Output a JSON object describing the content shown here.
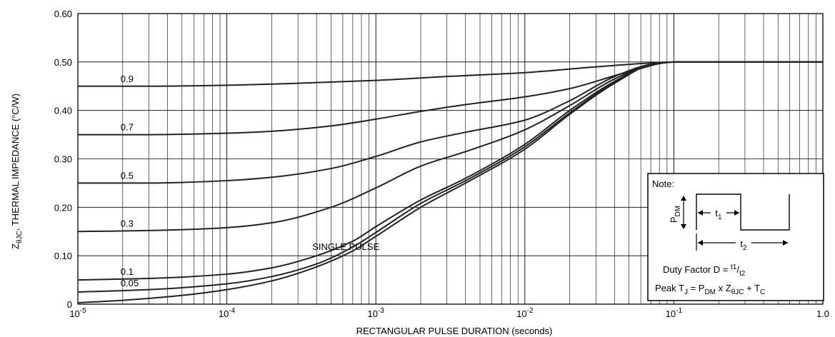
{
  "chart_data": {
    "type": "line",
    "title": "",
    "xscale": "log",
    "xlim": [
      1e-05,
      1.0
    ],
    "ylim": [
      0,
      0.6
    ],
    "grid": true,
    "xlabel": "RECTANGULAR PULSE DURATION (seconds)",
    "ylabel": {
      "prefix": "Z",
      "sub": "θJC",
      "rest": ", THERMAL IMPEDANCE (°C/W)"
    },
    "xtick_labels": [
      {
        "x": 1e-05,
        "base": "10",
        "exp": "-5"
      },
      {
        "x": 0.0001,
        "base": "10",
        "exp": "-4"
      },
      {
        "x": 0.001,
        "base": "10",
        "exp": "-3"
      },
      {
        "x": 0.01,
        "base": "10",
        "exp": "-2"
      },
      {
        "x": 0.1,
        "base": "10",
        "exp": "-1"
      },
      {
        "x": 1.0,
        "base": "1.0",
        "exp": ""
      }
    ],
    "ytick_labels": [
      "0",
      "0.10",
      "0.20",
      "0.30",
      "0.40",
      "0.50",
      "0.60"
    ],
    "yticks": [
      0,
      0.1,
      0.2,
      0.3,
      0.4,
      0.5,
      0.6
    ],
    "series": [
      {
        "name": "0.9",
        "x": [
          1e-05,
          3e-05,
          0.0001,
          0.0003,
          0.001,
          0.003,
          0.01,
          0.03,
          0.07,
          0.1,
          0.3,
          1.0
        ],
        "y": [
          0.45,
          0.45,
          0.452,
          0.456,
          0.462,
          0.47,
          0.478,
          0.49,
          0.498,
          0.5,
          0.5,
          0.5
        ],
        "label_x": 2e-05
      },
      {
        "name": "0.7",
        "x": [
          1e-05,
          3e-05,
          0.0001,
          0.0002,
          0.0005,
          0.001,
          0.002,
          0.004,
          0.01,
          0.02,
          0.05,
          0.1,
          0.3,
          1.0
        ],
        "y": [
          0.35,
          0.35,
          0.353,
          0.357,
          0.368,
          0.382,
          0.398,
          0.412,
          0.428,
          0.445,
          0.48,
          0.5,
          0.5,
          0.5
        ],
        "label_x": 2e-05
      },
      {
        "name": "0.5",
        "x": [
          1e-05,
          3e-05,
          0.0001,
          0.0002,
          0.0005,
          0.001,
          0.002,
          0.004,
          0.01,
          0.02,
          0.04,
          0.07,
          0.1,
          0.3,
          1.0
        ],
        "y": [
          0.25,
          0.25,
          0.255,
          0.262,
          0.28,
          0.305,
          0.335,
          0.355,
          0.38,
          0.42,
          0.47,
          0.495,
          0.5,
          0.5,
          0.5
        ],
        "label_x": 2e-05
      },
      {
        "name": "0.3",
        "x": [
          1e-05,
          3e-05,
          0.0001,
          0.0002,
          0.0005,
          0.001,
          0.002,
          0.004,
          0.01,
          0.02,
          0.04,
          0.07,
          0.1,
          0.3,
          1.0
        ],
        "y": [
          0.15,
          0.152,
          0.158,
          0.168,
          0.2,
          0.24,
          0.285,
          0.315,
          0.36,
          0.41,
          0.465,
          0.495,
          0.5,
          0.5,
          0.5
        ],
        "label_x": 2e-05
      },
      {
        "name": "0.1",
        "x": [
          1e-05,
          3e-05,
          0.0001,
          0.0002,
          0.0004,
          0.0007,
          0.001,
          0.002,
          0.004,
          0.01,
          0.02,
          0.04,
          0.07,
          0.1,
          0.3,
          1.0
        ],
        "y": [
          0.05,
          0.053,
          0.062,
          0.075,
          0.1,
          0.13,
          0.16,
          0.215,
          0.26,
          0.33,
          0.4,
          0.46,
          0.495,
          0.5,
          0.5,
          0.5
        ],
        "label_x": 2e-05
      },
      {
        "name": "0.05",
        "x": [
          1e-05,
          3e-05,
          0.0001,
          0.0002,
          0.0004,
          0.0007,
          0.001,
          0.002,
          0.004,
          0.01,
          0.02,
          0.04,
          0.07,
          0.1,
          0.3,
          1.0
        ],
        "y": [
          0.025,
          0.03,
          0.042,
          0.057,
          0.083,
          0.118,
          0.148,
          0.208,
          0.255,
          0.325,
          0.395,
          0.458,
          0.494,
          0.5,
          0.5,
          0.5
        ],
        "label_x": 2e-05
      },
      {
        "name": "SINGLE PULSE",
        "x": [
          1e-05,
          2e-05,
          5e-05,
          0.0001,
          0.0002,
          0.0004,
          0.0007,
          0.001,
          0.002,
          0.004,
          0.01,
          0.02,
          0.04,
          0.07,
          0.1,
          0.3,
          1.0
        ],
        "y": [
          0.003,
          0.008,
          0.018,
          0.03,
          0.048,
          0.077,
          0.11,
          0.14,
          0.2,
          0.25,
          0.32,
          0.392,
          0.456,
          0.494,
          0.5,
          0.5,
          0.5
        ],
        "label_x": 0.0004
      }
    ],
    "note": {
      "title": "Note:",
      "pdm": {
        "base": "P",
        "sub": "DM"
      },
      "t1": {
        "base": "t",
        "sub": "1"
      },
      "t2": {
        "base": "t",
        "sub": "2"
      },
      "duty": "Duty Factor  D = ",
      "duty_frac": {
        "num": "t1",
        "den": "t2"
      },
      "peak": {
        "p1": "Peak T",
        "s1": "J",
        "p2": " = P",
        "s2": "DM",
        "p3": " x Z",
        "s3": "θJC",
        "p4": " + T",
        "s4": "C"
      }
    }
  }
}
